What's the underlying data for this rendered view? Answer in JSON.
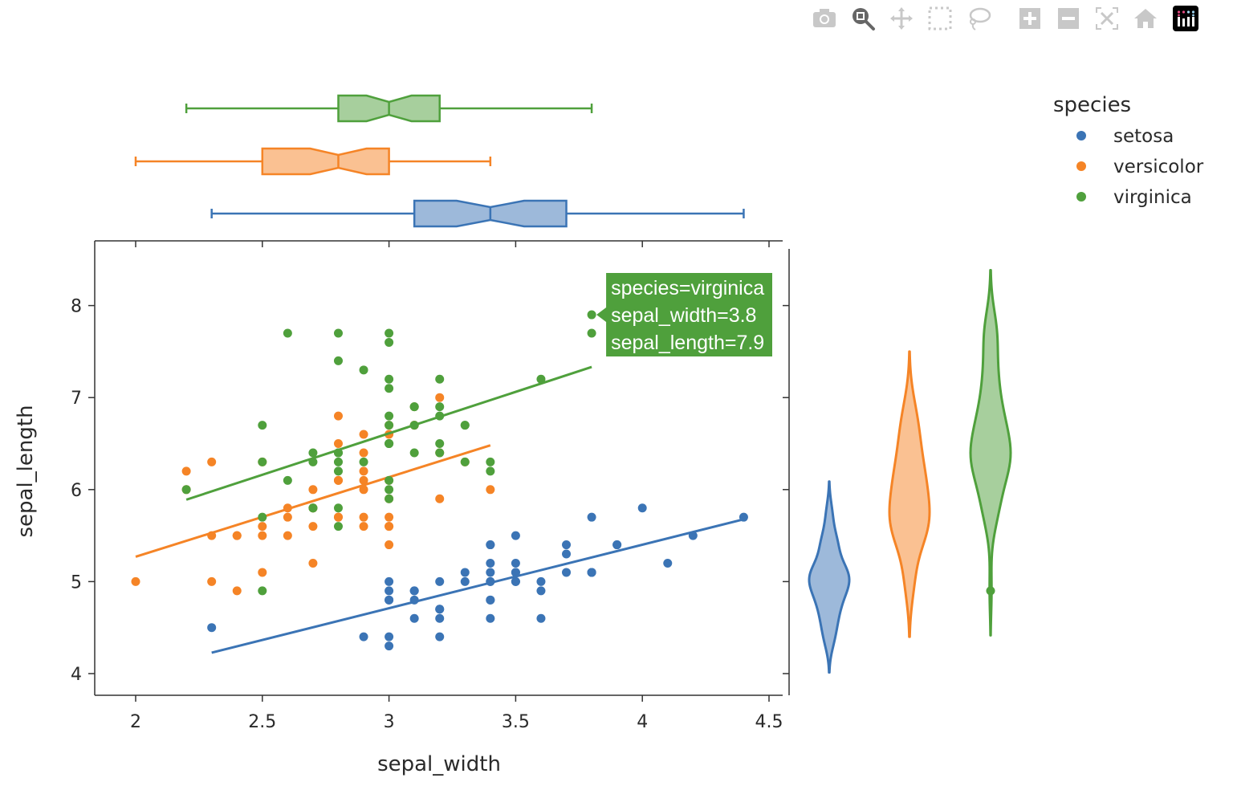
{
  "toolbar": {
    "buttons": [
      {
        "name": "camera-icon",
        "label": "Download plot as a png"
      },
      {
        "name": "zoom-icon",
        "label": "Zoom",
        "active": true
      },
      {
        "name": "pan-icon",
        "label": "Pan"
      },
      {
        "name": "box-select-icon",
        "label": "Box Select"
      },
      {
        "name": "lasso-select-icon",
        "label": "Lasso Select"
      },
      {
        "name": "zoom-in-icon",
        "label": "Zoom in"
      },
      {
        "name": "zoom-out-icon",
        "label": "Zoom out"
      },
      {
        "name": "autoscale-icon",
        "label": "Autoscale"
      },
      {
        "name": "reset-axes-icon",
        "label": "Reset axes"
      },
      {
        "name": "plotly-logo-icon",
        "label": "Produced with Plotly"
      }
    ]
  },
  "chart_data": {
    "type": "scatter",
    "xlabel": "sepal_width",
    "ylabel": "sepal_length",
    "xlim": [
      1.85,
      4.55
    ],
    "ylim": [
      3.85,
      8.65
    ],
    "xticks": [
      "2",
      "2.5",
      "3",
      "3.5",
      "4",
      "4.5"
    ],
    "yticks": [
      "4",
      "5",
      "6",
      "7",
      "8"
    ],
    "grid": false,
    "trendline": "ols",
    "marginal_x": "box (notched)",
    "marginal_y": "violin",
    "legend": {
      "title": "species",
      "placement": "top-right"
    },
    "series": [
      {
        "name": "setosa",
        "color": "#3b74b5",
        "x": [
          3.5,
          3.0,
          3.2,
          3.1,
          3.6,
          3.9,
          3.4,
          3.4,
          2.9,
          3.1,
          3.7,
          3.4,
          3.0,
          3.0,
          4.0,
          4.4,
          3.9,
          3.5,
          3.8,
          3.8,
          3.4,
          3.7,
          3.6,
          3.3,
          3.4,
          3.0,
          3.4,
          3.5,
          3.4,
          3.2,
          3.1,
          3.4,
          4.1,
          4.2,
          3.1,
          3.2,
          3.5,
          3.6,
          3.0,
          3.4,
          3.5,
          2.3,
          3.2,
          3.5,
          3.8,
          3.0,
          3.8,
          3.2,
          3.7,
          3.3
        ],
        "y": [
          5.1,
          4.9,
          4.7,
          4.6,
          5.0,
          5.4,
          4.6,
          5.0,
          4.4,
          4.9,
          5.4,
          4.8,
          4.8,
          4.3,
          5.8,
          5.7,
          5.4,
          5.1,
          5.7,
          5.1,
          5.4,
          5.1,
          4.6,
          5.1,
          4.8,
          5.0,
          5.0,
          5.2,
          5.2,
          4.7,
          4.8,
          5.4,
          5.2,
          5.5,
          4.9,
          5.0,
          5.5,
          4.9,
          4.4,
          5.1,
          5.0,
          4.5,
          4.4,
          5.0,
          5.1,
          4.8,
          5.1,
          4.6,
          5.3,
          5.0
        ],
        "box": {
          "min": 2.3,
          "q1": 3.1,
          "median": 3.4,
          "q3": 3.7,
          "max": 4.4
        }
      },
      {
        "name": "versicolor",
        "color": "#f58426",
        "x": [
          3.2,
          3.2,
          3.1,
          2.3,
          2.8,
          2.8,
          3.3,
          2.4,
          2.9,
          2.7,
          2.0,
          3.0,
          2.2,
          2.9,
          2.9,
          3.1,
          3.0,
          2.7,
          2.2,
          2.5,
          3.2,
          2.8,
          2.5,
          2.8,
          2.9,
          3.0,
          2.8,
          3.0,
          2.9,
          2.6,
          2.4,
          2.4,
          2.7,
          2.7,
          3.0,
          3.4,
          3.1,
          2.3,
          3.0,
          2.5,
          2.6,
          3.0,
          2.6,
          2.3,
          2.7,
          3.0,
          2.9,
          2.9,
          2.5,
          2.8
        ],
        "y": [
          7.0,
          6.4,
          6.9,
          5.5,
          6.5,
          5.7,
          6.3,
          4.9,
          6.6,
          5.2,
          5.0,
          5.9,
          6.0,
          6.1,
          5.6,
          6.7,
          5.6,
          5.8,
          6.2,
          5.6,
          5.9,
          6.1,
          6.3,
          6.1,
          6.4,
          6.6,
          6.8,
          6.7,
          6.0,
          5.7,
          5.5,
          5.5,
          5.8,
          6.0,
          5.4,
          6.0,
          6.7,
          6.3,
          5.6,
          5.5,
          5.5,
          6.1,
          5.8,
          5.0,
          5.6,
          5.7,
          5.7,
          6.2,
          5.1,
          5.7
        ],
        "box": {
          "min": 2.0,
          "q1": 2.5,
          "median": 2.8,
          "q3": 3.0,
          "max": 3.4
        }
      },
      {
        "name": "virginica",
        "color": "#4fa03c",
        "x": [
          3.3,
          2.7,
          3.0,
          2.9,
          3.0,
          3.0,
          2.5,
          2.9,
          2.5,
          3.6,
          3.2,
          2.7,
          3.0,
          2.5,
          2.8,
          3.2,
          3.0,
          3.8,
          2.6,
          2.2,
          3.2,
          2.8,
          2.8,
          2.7,
          3.3,
          3.2,
          2.8,
          3.0,
          2.8,
          3.0,
          2.8,
          3.8,
          2.8,
          2.8,
          2.6,
          3.0,
          3.4,
          3.1,
          3.0,
          3.1,
          3.1,
          3.1,
          2.7,
          3.2,
          3.3,
          3.0,
          2.5,
          3.0,
          3.4,
          3.0
        ],
        "y": [
          6.3,
          5.8,
          7.1,
          6.3,
          6.5,
          7.6,
          4.9,
          7.3,
          6.7,
          7.2,
          6.5,
          6.4,
          6.8,
          5.7,
          5.8,
          6.4,
          6.5,
          7.7,
          7.7,
          6.0,
          6.9,
          5.6,
          7.7,
          6.3,
          6.7,
          7.2,
          6.2,
          6.1,
          6.4,
          7.2,
          7.4,
          7.9,
          6.4,
          6.3,
          6.1,
          7.7,
          6.3,
          6.4,
          6.0,
          6.9,
          6.7,
          6.9,
          5.8,
          6.8,
          6.7,
          6.7,
          6.3,
          6.5,
          6.2,
          5.9
        ],
        "box": {
          "min": 2.2,
          "q1": 2.8,
          "median": 3.0,
          "q3": 3.2,
          "max": 3.8
        },
        "violin_outliers": [
          4.9
        ]
      }
    ],
    "hover": {
      "color": "#4fa03c",
      "lines": [
        "species=virginica",
        "sepal_width=3.8",
        "sepal_length=7.9"
      ],
      "point": {
        "x": 3.8,
        "y": 7.9
      }
    }
  }
}
